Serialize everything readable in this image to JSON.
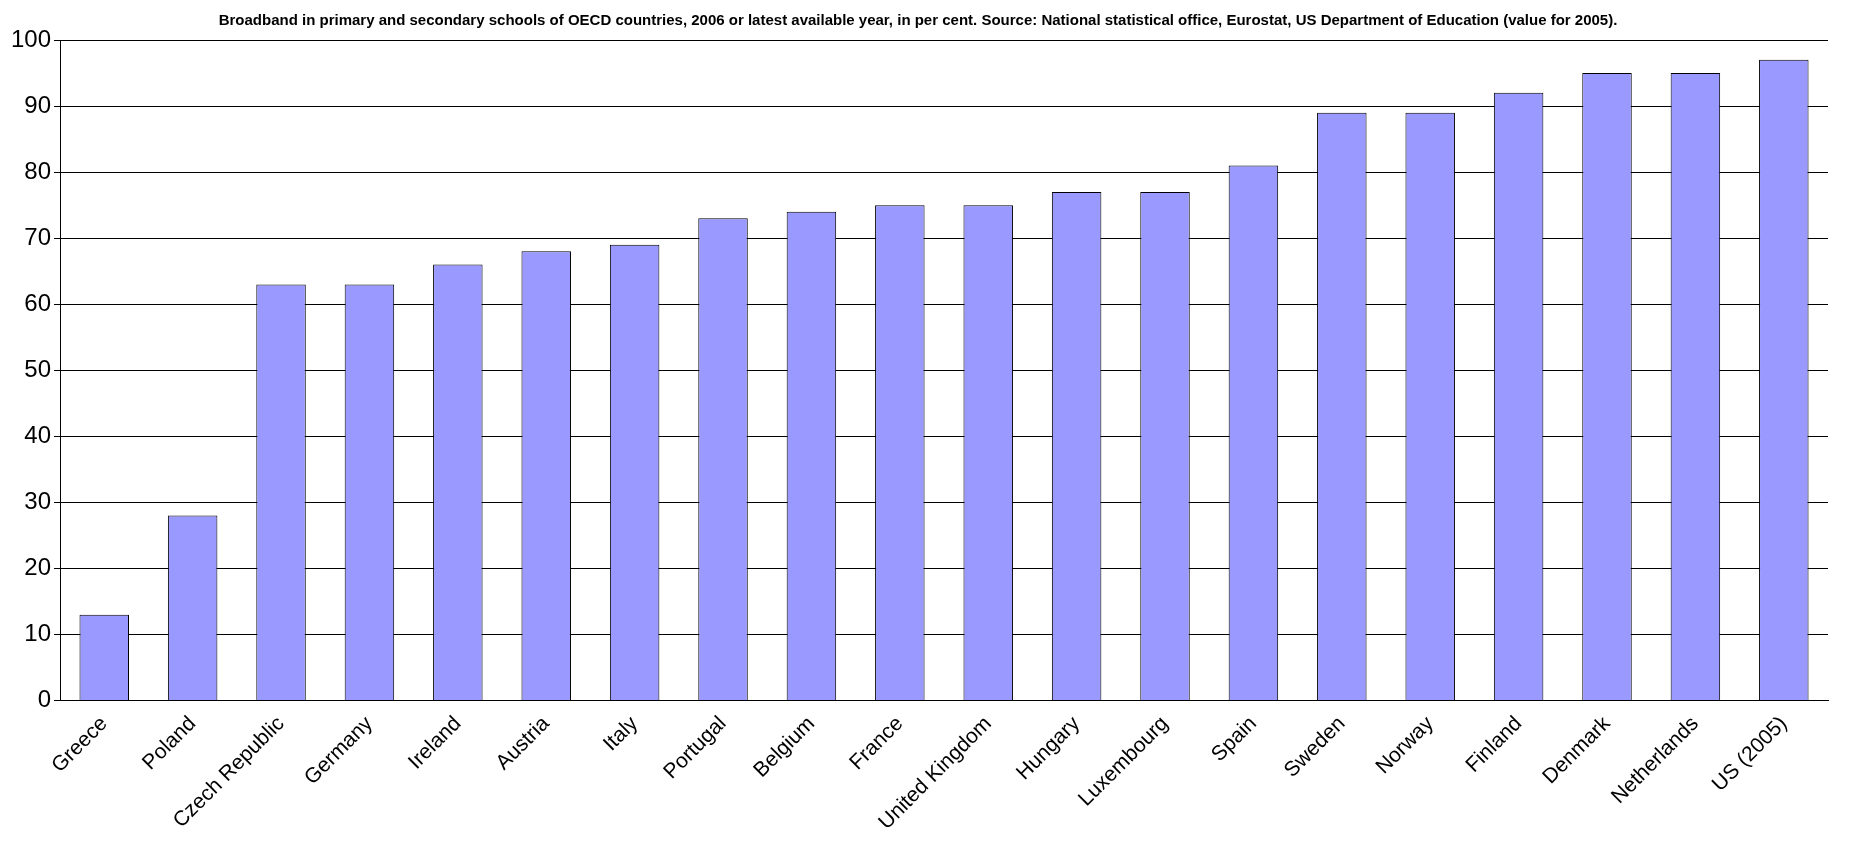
{
  "chart_data": {
    "type": "bar",
    "title": "Broadband in primary and secondary schools of OECD countries, 2006 or latest available year, in per cent. Source: National statistical office, Eurostat, US Department of Education (value for 2005).",
    "categories": [
      "Greece",
      "Poland",
      "Czech Republic",
      "Germany",
      "Ireland",
      "Austria",
      "Italy",
      "Portugal",
      "Belgium",
      "France",
      "United Kingdom",
      "Hungary",
      "Luxembourg",
      "Spain",
      "Sweden",
      "Norway",
      "Finland",
      "Denmark",
      "Netherlands",
      "US (2005)"
    ],
    "values": [
      13,
      28,
      63,
      63,
      66,
      68,
      69,
      73,
      74,
      75,
      75,
      77,
      77,
      81,
      89,
      89,
      92,
      95,
      95,
      97
    ],
    "color": "#9999ff",
    "ylim": [
      0,
      100
    ],
    "yticks": [
      0,
      10,
      20,
      30,
      40,
      50,
      60,
      70,
      80,
      90,
      100
    ],
    "grid": "y"
  }
}
